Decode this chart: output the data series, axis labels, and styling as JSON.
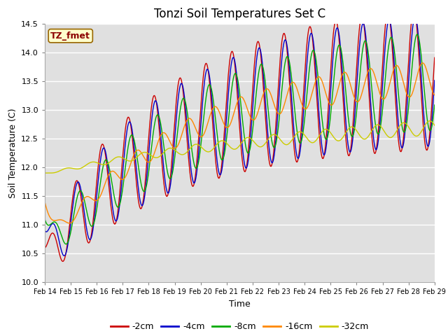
{
  "title": "Tonzi Soil Temperatures Set C",
  "xlabel": "Time",
  "ylabel": "Soil Temperature (C)",
  "ylim": [
    10.0,
    14.5
  ],
  "xlim": [
    0,
    15
  ],
  "annotation": "TZ_fmet",
  "xtick_labels": [
    "Feb 14",
    "Feb 15",
    "Feb 16",
    "Feb 17",
    "Feb 18",
    "Feb 19",
    "Feb 20",
    "Feb 21",
    "Feb 22",
    "Feb 23",
    "Feb 24",
    "Feb 25",
    "Feb 26",
    "Feb 27",
    "Feb 28",
    "Feb 29"
  ],
  "legend_labels": [
    "-2cm",
    "-4cm",
    "-8cm",
    "-16cm",
    "-32cm"
  ],
  "line_colors": [
    "#cc0000",
    "#0000cc",
    "#00aa00",
    "#ff8800",
    "#cccc00"
  ],
  "fig_bg_color": "#ffffff",
  "axis_bg_color": "#e0e0e0",
  "grid_color": "#ffffff",
  "title_fontsize": 12,
  "tick_fontsize": 7,
  "label_fontsize": 9,
  "legend_fontsize": 9,
  "n_days": 15,
  "points_per_day": 48
}
